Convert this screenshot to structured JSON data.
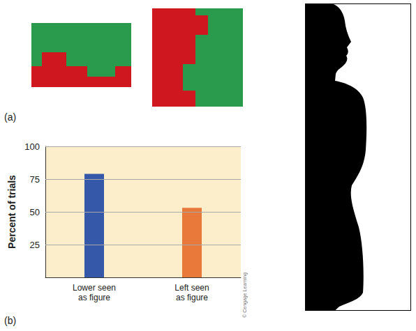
{
  "chart_data": {
    "type": "bar",
    "categories": [
      "Lower seen as figure",
      "Left seen as figure"
    ],
    "values": [
      79,
      53
    ],
    "colors": [
      "#3558a8",
      "#e8793a"
    ],
    "ylabel": "Percent of trials",
    "ylim": [
      0,
      100
    ],
    "yticks": [
      25,
      50,
      75,
      100
    ],
    "grid": true
  },
  "panel_labels": [
    "(a)",
    "(b)"
  ],
  "credit": "© Cengage Learning"
}
